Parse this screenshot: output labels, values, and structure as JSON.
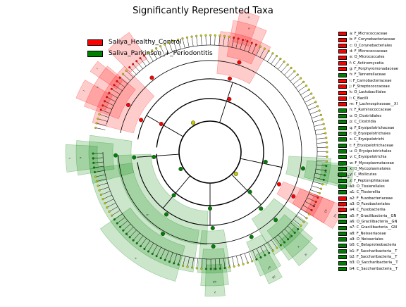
{
  "chart_data": {
    "type": "cladogram",
    "title": "Significantly Represented Taxa",
    "colors": {
      "Saliva_Healthy_Control": "#ff0000",
      "Saliva_Parkinson_+_Periodontitis": "#008000",
      "neutral_node": "#c8c800"
    },
    "legend": {
      "position": "top-left",
      "entries": [
        {
          "label": "Saliva_Healthy_Control",
          "color": "#ff0000"
        },
        {
          "label": "Saliva_Parkinson_+_Periodontitis",
          "color": "#008000"
        }
      ]
    },
    "clade_legend": [
      {
        "label": "a: F_Micrococcaceae",
        "color": "#ff0000"
      },
      {
        "label": "b: F_Corynebacteriaceae",
        "color": "#ff0000"
      },
      {
        "label": "c: O_Corynebacteriales",
        "color": "#ff0000"
      },
      {
        "label": "d: F_Micrococcaceae",
        "color": "#ff0000"
      },
      {
        "label": "e: O_Micrococcales",
        "color": "#ff0000"
      },
      {
        "label": "f: C_Actinomycetia",
        "color": "#ff0000"
      },
      {
        "label": "g: F_Porphyromonadaceae",
        "color": "#ff0000"
      },
      {
        "label": "h: F_Tannerellaceae",
        "color": "#008000"
      },
      {
        "label": "i: F_Carnobacteriaceae",
        "color": "#ff0000"
      },
      {
        "label": "j: F_Streptococcaceae",
        "color": "#ff0000"
      },
      {
        "label": "k: O_Lactobacillales",
        "color": "#ff0000"
      },
      {
        "label": "l: C_Bacilli",
        "color": "#ff0000"
      },
      {
        "label": "m: F_Lachnospiraceae__XI",
        "color": "#ff0000"
      },
      {
        "label": "n: F_Ruminococcaceae",
        "color": "#008000"
      },
      {
        "label": "o: O_Clostridiales",
        "color": "#008000"
      },
      {
        "label": "p: C_Clostridia",
        "color": "#008000"
      },
      {
        "label": "q: F_Erysipelotrichaceae",
        "color": "#008000"
      },
      {
        "label": "r: O_Erysipelotrichales",
        "color": "#008000"
      },
      {
        "label": "s: C_Erysipelotrichi",
        "color": "#008000"
      },
      {
        "label": "t: F_Erysipelotrichaceae",
        "color": "#008000"
      },
      {
        "label": "u: O_Erysipelotrichales",
        "color": "#008000"
      },
      {
        "label": "v: C_Erysipelotrichia",
        "color": "#008000"
      },
      {
        "label": "w: F_Mycoplasmataceae",
        "color": "#008000"
      },
      {
        "label": "x: O_Mycoplasmatales",
        "color": "#008000"
      },
      {
        "label": "y: C_Mollicutes",
        "color": "#008000"
      },
      {
        "label": "z: F_Peptoniphilaceae",
        "color": "#008000"
      },
      {
        "label": "a0: O_Tissierellales",
        "color": "#008000"
      },
      {
        "label": "a1: C_Tissierellia",
        "color": "#008000"
      },
      {
        "label": "a2: F_Fusobacteriaceae",
        "color": "#ff0000"
      },
      {
        "label": "a3: O_Fusobacteriales",
        "color": "#ff0000"
      },
      {
        "label": "a4: C_Fusobacteriia",
        "color": "#ff0000"
      },
      {
        "label": "a5: F_Gracilibacteria__GN",
        "color": "#008000"
      },
      {
        "label": "a6: O_Gracilibacteria__GN",
        "color": "#008000"
      },
      {
        "label": "a7: C_Gracilibacteria__GN",
        "color": "#008000"
      },
      {
        "label": "a8: F_Neisseriaceae",
        "color": "#008000"
      },
      {
        "label": "a9: O_Neisseriales",
        "color": "#008000"
      },
      {
        "label": "b0: C_Betaproteobacteria",
        "color": "#008000"
      },
      {
        "label": "b1: F_Saccharibacteria__T",
        "color": "#008000"
      },
      {
        "label": "b2: F_Saccharibacteria__T",
        "color": "#008000"
      },
      {
        "label": "b3: O_Saccharibacteria__T",
        "color": "#008000"
      },
      {
        "label": "b4: C_Saccharibacteria__T",
        "color": "#008000"
      }
    ],
    "sectors": [
      {
        "label": "l",
        "group": "Saliva_Healthy_Control",
        "start": -166,
        "end": -135,
        "ring": 4
      },
      {
        "label": "k",
        "group": "Saliva_Healthy_Control",
        "start": -160,
        "end": -140,
        "ring": 5
      },
      {
        "label": "j",
        "group": "Saliva_Healthy_Control",
        "start": -158,
        "end": -150,
        "ring": 6
      },
      {
        "label": "i",
        "group": "Saliva_Healthy_Control",
        "start": -146,
        "end": -141,
        "ring": 6
      },
      {
        "label": "g",
        "group": "Saliva_Healthy_Control",
        "start": -135,
        "end": -124,
        "ring": 6
      },
      {
        "label": "f",
        "group": "Saliva_Healthy_Control",
        "start": -85,
        "end": -60,
        "ring": 4
      },
      {
        "label": "e",
        "group": "Saliva_Healthy_Control",
        "start": -80,
        "end": -65,
        "ring": 5
      },
      {
        "label": "a",
        "group": "Saliva_Healthy_Control",
        "start": -78,
        "end": -70,
        "ring": 6
      },
      {
        "label": "a4",
        "group": "Saliva_Healthy_Control",
        "start": 22,
        "end": 32,
        "ring": 4
      },
      {
        "label": "a3",
        "group": "Saliva_Healthy_Control",
        "start": 22,
        "end": 32,
        "ring": 5
      },
      {
        "label": "a2",
        "group": "Saliva_Healthy_Control",
        "start": 22,
        "end": 32,
        "ring": 6
      },
      {
        "label": "p",
        "group": "Saliva_Parkinson_+_Periodontitis",
        "start": 92,
        "end": 178,
        "ring": 3
      },
      {
        "label": "o",
        "group": "Saliva_Parkinson_+_Periodontitis",
        "start": 98,
        "end": 172,
        "ring": 4
      },
      {
        "label": "n",
        "group": "Saliva_Parkinson_+_Periodontitis",
        "start": 105,
        "end": 145,
        "ring": 5
      },
      {
        "label": "v",
        "group": "Saliva_Parkinson_+_Periodontitis",
        "start": 165,
        "end": 188,
        "ring": 4
      },
      {
        "label": "u",
        "group": "Saliva_Parkinson_+_Periodontitis",
        "start": 170,
        "end": 185,
        "ring": 5
      },
      {
        "label": "t",
        "group": "Saliva_Parkinson_+_Periodontitis",
        "start": 172,
        "end": 183,
        "ring": 6
      },
      {
        "label": "b0",
        "group": "Saliva_Parkinson_+_Periodontitis",
        "start": 3,
        "end": 16,
        "ring": 4
      },
      {
        "label": "a9",
        "group": "Saliva_Parkinson_+_Periodontitis",
        "start": 5,
        "end": 15,
        "ring": 5
      },
      {
        "label": "a8",
        "group": "Saliva_Parkinson_+_Periodontitis",
        "start": 6,
        "end": 14,
        "ring": 6
      },
      {
        "label": "y",
        "group": "Saliva_Parkinson_+_Periodontitis",
        "start": 36,
        "end": 58,
        "ring": 4
      },
      {
        "label": "x",
        "group": "Saliva_Parkinson_+_Periodontitis",
        "start": 40,
        "end": 54,
        "ring": 5
      },
      {
        "label": "w",
        "group": "Saliva_Parkinson_+_Periodontitis",
        "start": 42,
        "end": 52,
        "ring": 6
      },
      {
        "label": "a7",
        "group": "Saliva_Parkinson_+_Periodontitis",
        "start": 58,
        "end": 68,
        "ring": 5
      },
      {
        "label": "a6",
        "group": "Saliva_Parkinson_+_Periodontitis",
        "start": 60,
        "end": 66,
        "ring": 6
      },
      {
        "label": "a1",
        "group": "Saliva_Parkinson_+_Periodontitis",
        "start": 80,
        "end": 96,
        "ring": 4
      },
      {
        "label": "a0",
        "group": "Saliva_Parkinson_+_Periodontitis",
        "start": 82,
        "end": 94,
        "ring": 5
      },
      {
        "label": "z",
        "group": "Saliva_Parkinson_+_Periodontitis",
        "start": 84,
        "end": 92,
        "ring": 6
      }
    ]
  }
}
